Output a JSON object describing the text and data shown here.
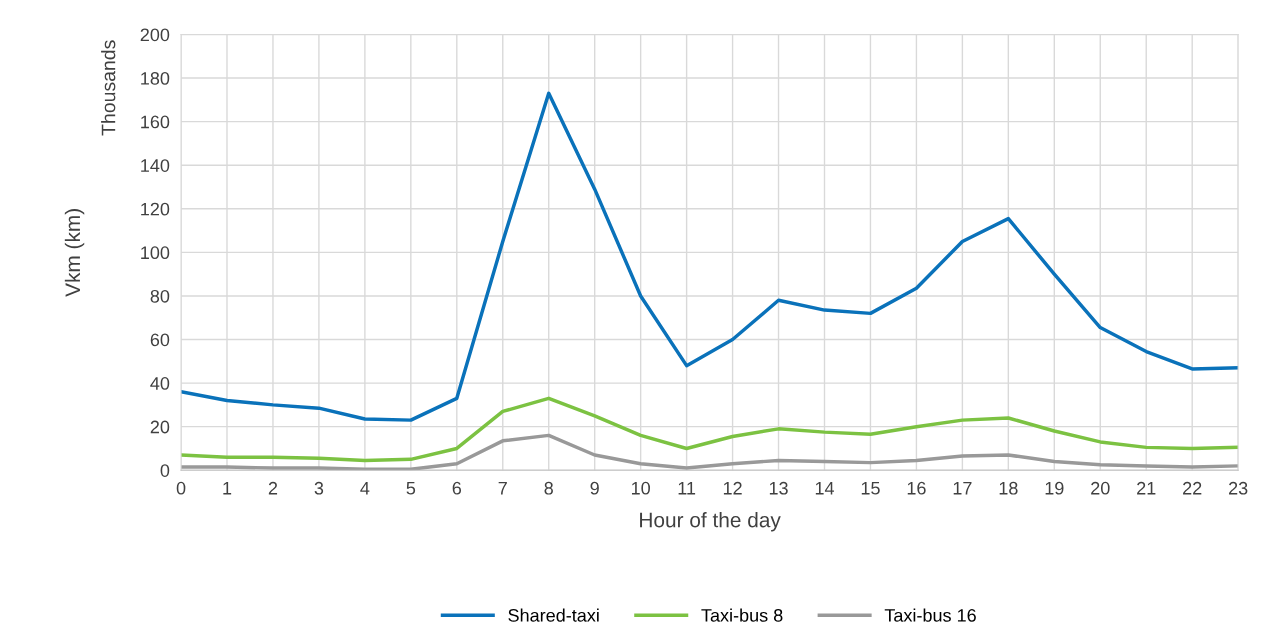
{
  "chart_data": {
    "type": "line",
    "xlabel": "Hour of the day",
    "ylabel": "Vkm (km)",
    "annotations": [
      "Thousands"
    ],
    "categories": [
      "0",
      "1",
      "2",
      "3",
      "4",
      "5",
      "6",
      "7",
      "8",
      "9",
      "10",
      "11",
      "12",
      "13",
      "14",
      "15",
      "16",
      "17",
      "18",
      "19",
      "20",
      "21",
      "22",
      "23"
    ],
    "series": [
      {
        "name": "Shared-taxi",
        "color": "#0a72ba",
        "values": [
          36,
          32,
          30,
          28.5,
          23.5,
          23,
          33,
          105,
          173,
          129,
          80,
          48,
          60,
          78,
          73.5,
          72,
          83.5,
          105,
          115.5,
          90,
          65.5,
          54.5,
          46.5,
          47
        ]
      },
      {
        "name": "Taxi-bus 8",
        "color": "#7cc242",
        "values": [
          7,
          6,
          6,
          5.5,
          4.5,
          5,
          10,
          27,
          33,
          25,
          16,
          10,
          15.5,
          19,
          17.5,
          16.5,
          20,
          23,
          24,
          18,
          13,
          10.5,
          10,
          10.5
        ]
      },
      {
        "name": "Taxi-bus 16",
        "color": "#999999",
        "values": [
          1.5,
          1.5,
          1,
          1,
          0.5,
          0.5,
          3,
          13.5,
          16,
          7,
          3,
          1,
          3,
          4.5,
          4,
          3.5,
          4.5,
          6.5,
          7,
          4,
          2.5,
          2,
          1.5,
          2
        ]
      }
    ],
    "ylim": [
      0,
      200
    ],
    "yticks": [
      0,
      20,
      40,
      60,
      80,
      100,
      120,
      140,
      160,
      180,
      200
    ],
    "grid": true,
    "legend": "bottom",
    "marker": "none",
    "line_style": "solid"
  }
}
